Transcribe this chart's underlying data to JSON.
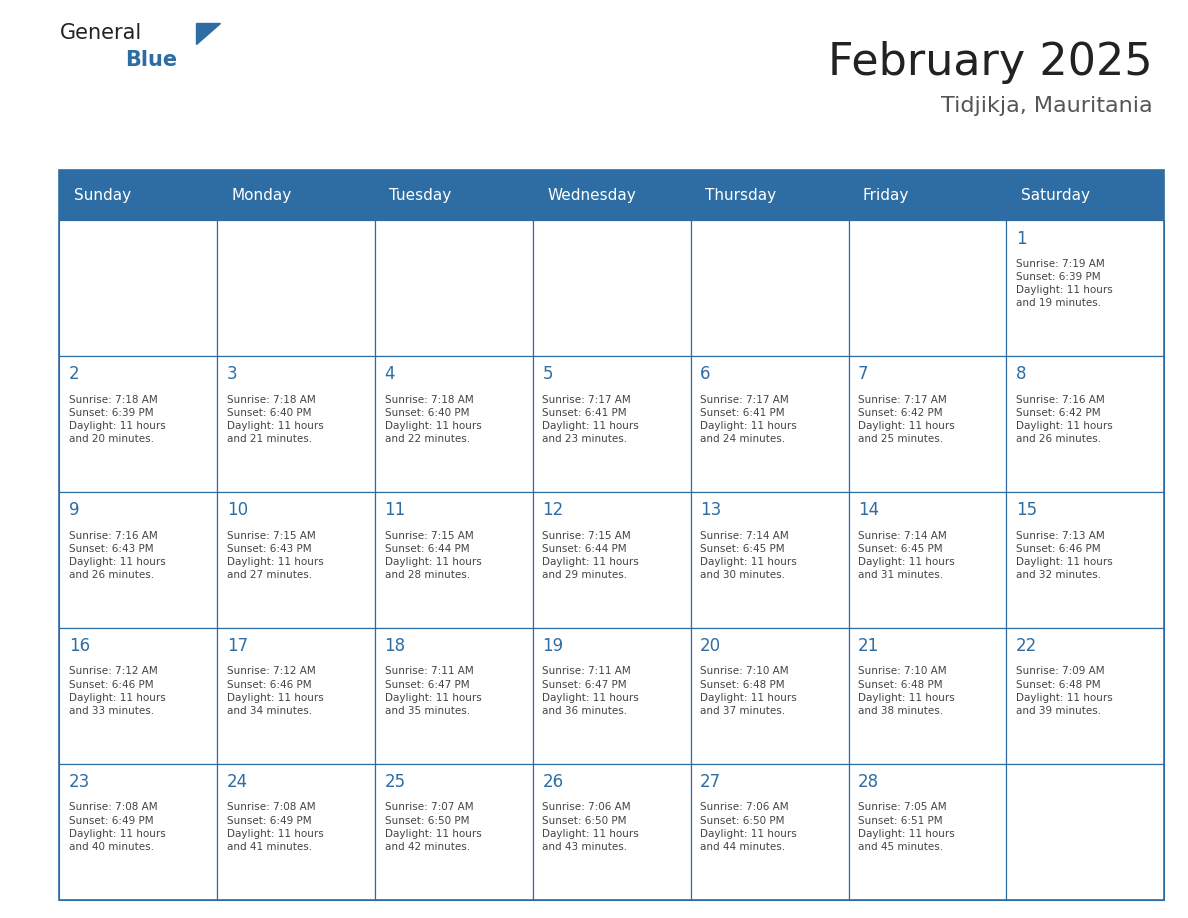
{
  "title": "February 2025",
  "subtitle": "Tidjikja, Mauritania",
  "days_of_week": [
    "Sunday",
    "Monday",
    "Tuesday",
    "Wednesday",
    "Thursday",
    "Friday",
    "Saturday"
  ],
  "header_bg": "#2e6da4",
  "header_text_color": "#ffffff",
  "cell_bg": "#ffffff",
  "border_color": "#2e6da4",
  "day_num_color": "#2e6da4",
  "info_text_color": "#444444",
  "title_color": "#222222",
  "subtitle_color": "#555555",
  "logo_general_color": "#222222",
  "logo_blue_color": "#2e6da4",
  "weeks": [
    [
      {
        "day": null,
        "info": ""
      },
      {
        "day": null,
        "info": ""
      },
      {
        "day": null,
        "info": ""
      },
      {
        "day": null,
        "info": ""
      },
      {
        "day": null,
        "info": ""
      },
      {
        "day": null,
        "info": ""
      },
      {
        "day": 1,
        "info": "Sunrise: 7:19 AM\nSunset: 6:39 PM\nDaylight: 11 hours\nand 19 minutes."
      }
    ],
    [
      {
        "day": 2,
        "info": "Sunrise: 7:18 AM\nSunset: 6:39 PM\nDaylight: 11 hours\nand 20 minutes."
      },
      {
        "day": 3,
        "info": "Sunrise: 7:18 AM\nSunset: 6:40 PM\nDaylight: 11 hours\nand 21 minutes."
      },
      {
        "day": 4,
        "info": "Sunrise: 7:18 AM\nSunset: 6:40 PM\nDaylight: 11 hours\nand 22 minutes."
      },
      {
        "day": 5,
        "info": "Sunrise: 7:17 AM\nSunset: 6:41 PM\nDaylight: 11 hours\nand 23 minutes."
      },
      {
        "day": 6,
        "info": "Sunrise: 7:17 AM\nSunset: 6:41 PM\nDaylight: 11 hours\nand 24 minutes."
      },
      {
        "day": 7,
        "info": "Sunrise: 7:17 AM\nSunset: 6:42 PM\nDaylight: 11 hours\nand 25 minutes."
      },
      {
        "day": 8,
        "info": "Sunrise: 7:16 AM\nSunset: 6:42 PM\nDaylight: 11 hours\nand 26 minutes."
      }
    ],
    [
      {
        "day": 9,
        "info": "Sunrise: 7:16 AM\nSunset: 6:43 PM\nDaylight: 11 hours\nand 26 minutes."
      },
      {
        "day": 10,
        "info": "Sunrise: 7:15 AM\nSunset: 6:43 PM\nDaylight: 11 hours\nand 27 minutes."
      },
      {
        "day": 11,
        "info": "Sunrise: 7:15 AM\nSunset: 6:44 PM\nDaylight: 11 hours\nand 28 minutes."
      },
      {
        "day": 12,
        "info": "Sunrise: 7:15 AM\nSunset: 6:44 PM\nDaylight: 11 hours\nand 29 minutes."
      },
      {
        "day": 13,
        "info": "Sunrise: 7:14 AM\nSunset: 6:45 PM\nDaylight: 11 hours\nand 30 minutes."
      },
      {
        "day": 14,
        "info": "Sunrise: 7:14 AM\nSunset: 6:45 PM\nDaylight: 11 hours\nand 31 minutes."
      },
      {
        "day": 15,
        "info": "Sunrise: 7:13 AM\nSunset: 6:46 PM\nDaylight: 11 hours\nand 32 minutes."
      }
    ],
    [
      {
        "day": 16,
        "info": "Sunrise: 7:12 AM\nSunset: 6:46 PM\nDaylight: 11 hours\nand 33 minutes."
      },
      {
        "day": 17,
        "info": "Sunrise: 7:12 AM\nSunset: 6:46 PM\nDaylight: 11 hours\nand 34 minutes."
      },
      {
        "day": 18,
        "info": "Sunrise: 7:11 AM\nSunset: 6:47 PM\nDaylight: 11 hours\nand 35 minutes."
      },
      {
        "day": 19,
        "info": "Sunrise: 7:11 AM\nSunset: 6:47 PM\nDaylight: 11 hours\nand 36 minutes."
      },
      {
        "day": 20,
        "info": "Sunrise: 7:10 AM\nSunset: 6:48 PM\nDaylight: 11 hours\nand 37 minutes."
      },
      {
        "day": 21,
        "info": "Sunrise: 7:10 AM\nSunset: 6:48 PM\nDaylight: 11 hours\nand 38 minutes."
      },
      {
        "day": 22,
        "info": "Sunrise: 7:09 AM\nSunset: 6:48 PM\nDaylight: 11 hours\nand 39 minutes."
      }
    ],
    [
      {
        "day": 23,
        "info": "Sunrise: 7:08 AM\nSunset: 6:49 PM\nDaylight: 11 hours\nand 40 minutes."
      },
      {
        "day": 24,
        "info": "Sunrise: 7:08 AM\nSunset: 6:49 PM\nDaylight: 11 hours\nand 41 minutes."
      },
      {
        "day": 25,
        "info": "Sunrise: 7:07 AM\nSunset: 6:50 PM\nDaylight: 11 hours\nand 42 minutes."
      },
      {
        "day": 26,
        "info": "Sunrise: 7:06 AM\nSunset: 6:50 PM\nDaylight: 11 hours\nand 43 minutes."
      },
      {
        "day": 27,
        "info": "Sunrise: 7:06 AM\nSunset: 6:50 PM\nDaylight: 11 hours\nand 44 minutes."
      },
      {
        "day": 28,
        "info": "Sunrise: 7:05 AM\nSunset: 6:51 PM\nDaylight: 11 hours\nand 45 minutes."
      },
      {
        "day": null,
        "info": ""
      }
    ]
  ]
}
